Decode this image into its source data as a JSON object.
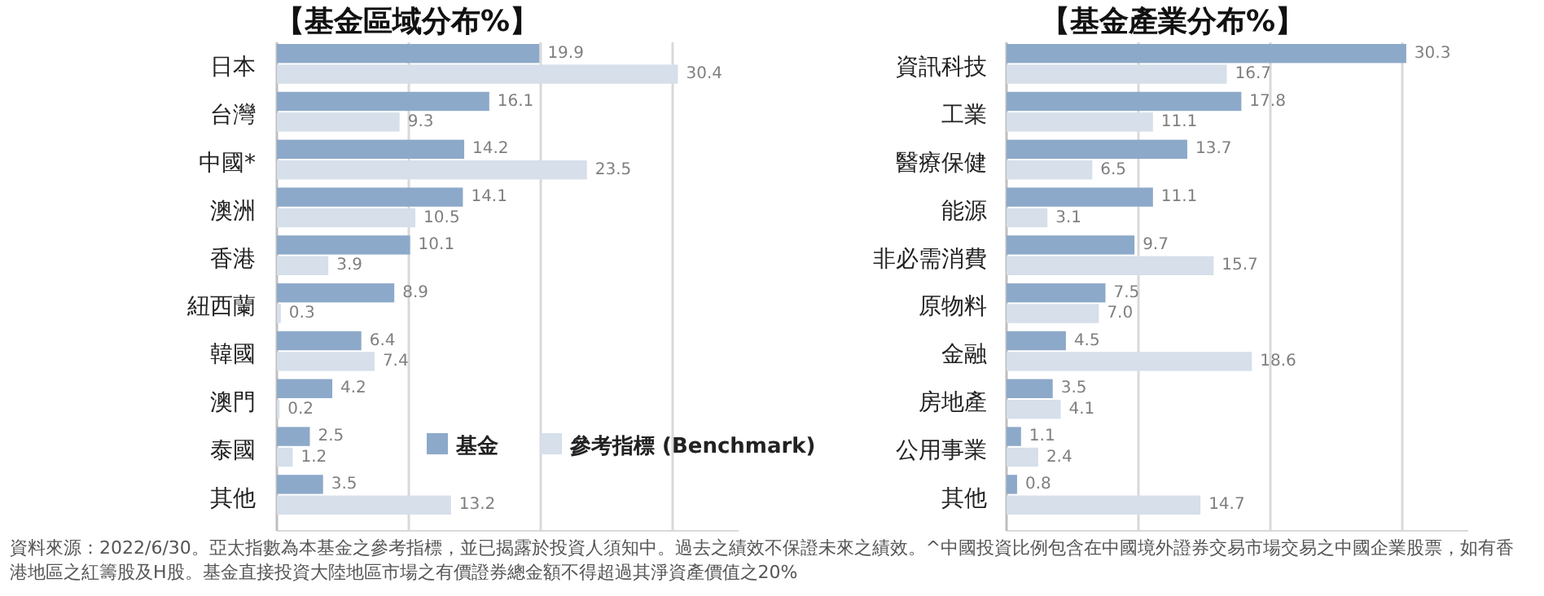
{
  "chart_data": [
    {
      "type": "bar",
      "orientation": "horizontal",
      "title": "【基金區域分布%】",
      "categories": [
        "日本",
        "台灣",
        "中國*",
        "澳洲",
        "香港",
        "紐西蘭",
        "韓國",
        "澳門",
        "泰國",
        "其他"
      ],
      "series": [
        {
          "name": "基金",
          "color": "#8da9c9",
          "values": [
            19.9,
            16.1,
            14.2,
            14.1,
            10.1,
            8.9,
            6.4,
            4.2,
            2.5,
            3.5
          ]
        },
        {
          "name": "參考指標 (Benchmark)",
          "color": "#d6dfea",
          "values": [
            30.4,
            9.3,
            23.5,
            10.5,
            3.9,
            0.3,
            7.4,
            0.2,
            1.2,
            13.2
          ]
        }
      ],
      "xlim": [
        0,
        35
      ],
      "xticks": [
        {
          "value": 0,
          "label": null
        },
        {
          "value": 10,
          "label": null
        },
        {
          "value": 20,
          "label": null
        },
        {
          "value": 30,
          "label": null
        }
      ],
      "grid": "x",
      "data_labels": true,
      "legend": "bottom right",
      "annotations": [
        "資料來源：2022/6/30。亞太指數為本基金之參考指標，並已揭露於投資人須知中。過去之績效不保證未來之績效。^中國投資比例包含在中國境外證券交易市場交易之中國企業股票，如有香港地區之紅籌股及H股。基金直接投資大陸地區市場之有價證券總金額不得超過其淨資產價值之20%"
      ]
    },
    {
      "type": "bar",
      "orientation": "horizontal",
      "title": "【基金產業分布%】",
      "categories": [
        "資訊科技",
        "工業",
        "醫療保健",
        "能源",
        "非必需消費",
        "原物料",
        "金融",
        "房地產",
        "公用事業",
        "其他"
      ],
      "series": [
        {
          "color": "#8da9c9",
          "values": [
            30.3,
            17.8,
            13.7,
            11.1,
            9.7,
            7.5,
            4.5,
            3.5,
            1.1,
            0.8
          ]
        },
        {
          "color": "#d6dfea",
          "values": [
            16.7,
            11.1,
            6.5,
            3.1,
            15.7,
            7.0,
            18.6,
            4.1,
            2.4,
            14.7
          ],
          "value_labels": [
            "16.7",
            "11.1",
            "6.5",
            "3.1",
            "15.7",
            "7.0",
            "18.6",
            "4.1",
            "2.4",
            "14.7"
          ]
        }
      ],
      "xlim": [
        0,
        35
      ],
      "xticks": [
        {
          "value": 0,
          "label": null
        },
        {
          "value": 10,
          "label": null
        },
        {
          "value": 20,
          "label": null
        },
        {
          "value": 30,
          "label": null
        }
      ],
      "grid": "x",
      "data_labels": true
    }
  ]
}
